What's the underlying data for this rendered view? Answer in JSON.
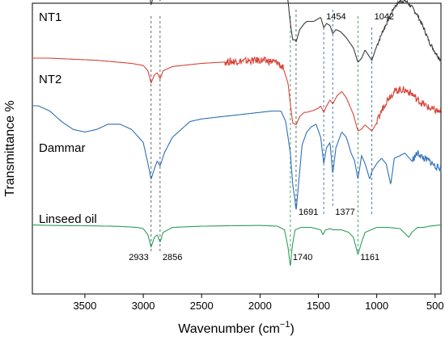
{
  "chart_data": {
    "type": "line",
    "title": "",
    "xlabel_main": "Wavenumber (cm",
    "xlabel_sup": "−1",
    "xlabel_close": ")",
    "ylabel": "Transmittance %",
    "xlim": [
      3950,
      450
    ],
    "x_reversed": true,
    "xticks": [
      3500,
      3000,
      2500,
      2000,
      1500,
      1000,
      500
    ],
    "grid": false,
    "legend": "none",
    "series": [
      {
        "name": "NT1",
        "color": "#3a3a3a",
        "points": [
          [
            3950,
            0.86
          ],
          [
            3800,
            0.865
          ],
          [
            3600,
            0.87
          ],
          [
            3400,
            0.87
          ],
          [
            3200,
            0.865
          ],
          [
            3050,
            0.86
          ],
          [
            2980,
            0.85
          ],
          [
            2950,
            0.79
          ],
          [
            2933,
            0.73
          ],
          [
            2905,
            0.79
          ],
          [
            2880,
            0.8
          ],
          [
            2856,
            0.75
          ],
          [
            2830,
            0.81
          ],
          [
            2750,
            0.84
          ],
          [
            2500,
            0.85
          ],
          [
            2200,
            0.86
          ],
          [
            2000,
            0.865
          ],
          [
            1850,
            0.865
          ],
          [
            1790,
            0.84
          ],
          [
            1760,
            0.75
          ],
          [
            1740,
            0.64
          ],
          [
            1720,
            0.56
          ],
          [
            1700,
            0.56
          ],
          [
            1691,
            0.55
          ],
          [
            1660,
            0.61
          ],
          [
            1620,
            0.64
          ],
          [
            1600,
            0.65
          ],
          [
            1540,
            0.65
          ],
          [
            1510,
            0.66
          ],
          [
            1480,
            0.67
          ],
          [
            1454,
            0.62
          ],
          [
            1430,
            0.64
          ],
          [
            1400,
            0.63
          ],
          [
            1377,
            0.59
          ],
          [
            1350,
            0.61
          ],
          [
            1310,
            0.6
          ],
          [
            1260,
            0.57
          ],
          [
            1200,
            0.52
          ],
          [
            1161,
            0.45
          ],
          [
            1130,
            0.47
          ],
          [
            1100,
            0.51
          ],
          [
            1042,
            0.46
          ],
          [
            1000,
            0.53
          ],
          [
            950,
            0.6
          ],
          [
            900,
            0.66
          ],
          [
            850,
            0.72
          ],
          [
            800,
            0.75
          ],
          [
            750,
            0.75
          ],
          [
            700,
            0.72
          ],
          [
            650,
            0.68
          ],
          [
            600,
            0.62
          ],
          [
            550,
            0.55
          ],
          [
            500,
            0.5
          ],
          [
            450,
            0.46
          ]
        ]
      },
      {
        "name": "NT2",
        "color": "#d8453a",
        "points": [
          [
            3950,
            0.62
          ],
          [
            3800,
            0.62
          ],
          [
            3600,
            0.615
          ],
          [
            3400,
            0.61
          ],
          [
            3200,
            0.6
          ],
          [
            3100,
            0.595
          ],
          [
            3000,
            0.585
          ],
          [
            2960,
            0.56
          ],
          [
            2933,
            0.5
          ],
          [
            2905,
            0.54
          ],
          [
            2880,
            0.55
          ],
          [
            2856,
            0.52
          ],
          [
            2830,
            0.56
          ],
          [
            2750,
            0.58
          ],
          [
            2500,
            0.595
          ],
          [
            2200,
            0.605
          ],
          [
            2000,
            0.61
          ],
          [
            1850,
            0.6
          ],
          [
            1800,
            0.57
          ],
          [
            1760,
            0.5
          ],
          [
            1740,
            0.4
          ],
          [
            1720,
            0.31
          ],
          [
            1691,
            0.3
          ],
          [
            1660,
            0.34
          ],
          [
            1620,
            0.36
          ],
          [
            1600,
            0.36
          ],
          [
            1540,
            0.37
          ],
          [
            1500,
            0.38
          ],
          [
            1480,
            0.39
          ],
          [
            1454,
            0.36
          ],
          [
            1430,
            0.39
          ],
          [
            1400,
            0.42
          ],
          [
            1377,
            0.4
          ],
          [
            1340,
            0.44
          ],
          [
            1300,
            0.46
          ],
          [
            1260,
            0.43
          ],
          [
            1200,
            0.35
          ],
          [
            1161,
            0.27
          ],
          [
            1130,
            0.28
          ],
          [
            1100,
            0.3
          ],
          [
            1042,
            0.27
          ],
          [
            1000,
            0.31
          ],
          [
            950,
            0.38
          ],
          [
            900,
            0.43
          ],
          [
            850,
            0.46
          ],
          [
            800,
            0.47
          ],
          [
            750,
            0.465
          ],
          [
            700,
            0.45
          ],
          [
            650,
            0.42
          ],
          [
            600,
            0.4
          ],
          [
            550,
            0.38
          ],
          [
            500,
            0.37
          ],
          [
            450,
            0.36
          ]
        ]
      },
      {
        "name": "Dammar",
        "color": "#2f6fb5",
        "points": [
          [
            3950,
            0.52
          ],
          [
            3900,
            0.52
          ],
          [
            3800,
            0.5
          ],
          [
            3700,
            0.46
          ],
          [
            3600,
            0.43
          ],
          [
            3500,
            0.42
          ],
          [
            3400,
            0.43
          ],
          [
            3300,
            0.45
          ],
          [
            3200,
            0.45
          ],
          [
            3100,
            0.43
          ],
          [
            3000,
            0.38
          ],
          [
            2960,
            0.3
          ],
          [
            2933,
            0.24
          ],
          [
            2905,
            0.28
          ],
          [
            2880,
            0.31
          ],
          [
            2856,
            0.29
          ],
          [
            2820,
            0.34
          ],
          [
            2750,
            0.4
          ],
          [
            2600,
            0.46
          ],
          [
            2500,
            0.47
          ],
          [
            2300,
            0.48
          ],
          [
            2100,
            0.49
          ],
          [
            1900,
            0.5
          ],
          [
            1820,
            0.5
          ],
          [
            1780,
            0.46
          ],
          [
            1740,
            0.34
          ],
          [
            1720,
            0.22
          ],
          [
            1700,
            0.16
          ],
          [
            1691,
            0.12
          ],
          [
            1670,
            0.22
          ],
          [
            1640,
            0.37
          ],
          [
            1600,
            0.42
          ],
          [
            1560,
            0.44
          ],
          [
            1520,
            0.45
          ],
          [
            1480,
            0.4
          ],
          [
            1454,
            0.3
          ],
          [
            1430,
            0.36
          ],
          [
            1400,
            0.38
          ],
          [
            1377,
            0.26
          ],
          [
            1350,
            0.36
          ],
          [
            1300,
            0.42
          ],
          [
            1260,
            0.4
          ],
          [
            1220,
            0.34
          ],
          [
            1190,
            0.31
          ],
          [
            1161,
            0.24
          ],
          [
            1130,
            0.33
          ],
          [
            1100,
            0.3
          ],
          [
            1060,
            0.24
          ],
          [
            1042,
            0.27
          ],
          [
            1000,
            0.3
          ],
          [
            960,
            0.32
          ],
          [
            920,
            0.3
          ],
          [
            880,
            0.22
          ],
          [
            850,
            0.32
          ],
          [
            800,
            0.33
          ],
          [
            760,
            0.34
          ],
          [
            700,
            0.31
          ],
          [
            650,
            0.34
          ],
          [
            600,
            0.32
          ],
          [
            550,
            0.31
          ],
          [
            500,
            0.29
          ],
          [
            450,
            0.28
          ]
        ]
      },
      {
        "name": "Linseed oil",
        "color": "#2e9e5a",
        "points": [
          [
            3950,
            0.07
          ],
          [
            3800,
            0.068
          ],
          [
            3600,
            0.067
          ],
          [
            3400,
            0.066
          ],
          [
            3200,
            0.064
          ],
          [
            3050,
            0.06
          ],
          [
            3000,
            0.055
          ],
          [
            2960,
            0.03
          ],
          [
            2933,
            -0.02
          ],
          [
            2905,
            0.02
          ],
          [
            2880,
            0.03
          ],
          [
            2856,
            0.0
          ],
          [
            2830,
            0.04
          ],
          [
            2750,
            0.06
          ],
          [
            2500,
            0.065
          ],
          [
            2200,
            0.067
          ],
          [
            2000,
            0.068
          ],
          [
            1850,
            0.065
          ],
          [
            1790,
            0.05
          ],
          [
            1760,
            -0.02
          ],
          [
            1740,
            -0.1
          ],
          [
            1725,
            -0.02
          ],
          [
            1700,
            0.05
          ],
          [
            1650,
            0.06
          ],
          [
            1560,
            0.06
          ],
          [
            1480,
            0.05
          ],
          [
            1460,
            0.03
          ],
          [
            1440,
            0.05
          ],
          [
            1400,
            0.055
          ],
          [
            1377,
            0.05
          ],
          [
            1300,
            0.05
          ],
          [
            1240,
            0.04
          ],
          [
            1200,
            0.02
          ],
          [
            1161,
            -0.05
          ],
          [
            1130,
            0.0
          ],
          [
            1100,
            0.04
          ],
          [
            1050,
            0.05
          ],
          [
            1000,
            0.06
          ],
          [
            950,
            0.06
          ],
          [
            900,
            0.06
          ],
          [
            800,
            0.055
          ],
          [
            725,
            0.02
          ],
          [
            700,
            0.04
          ],
          [
            650,
            0.06
          ],
          [
            600,
            0.06
          ],
          [
            550,
            0.065
          ],
          [
            450,
            0.07
          ]
        ]
      }
    ],
    "series_labels": [
      {
        "text": "NT1",
        "series": 0
      },
      {
        "text": "NT2",
        "series": 1
      },
      {
        "text": "Dammar",
        "series": 2
      },
      {
        "text": "Linseed oil",
        "series": 3
      }
    ],
    "marker_lines": [
      {
        "x": 2933,
        "color": "#555555",
        "label": "2933",
        "label_pos": "bottom"
      },
      {
        "x": 2856,
        "color": "#555555",
        "label": "2856",
        "label_pos": "bottom"
      },
      {
        "x": 1740,
        "color": "#2e9e5a",
        "label": "1740",
        "label_pos": "bottom"
      },
      {
        "x": 1691,
        "color": "#555555",
        "label": "1691",
        "label_pos": "middle"
      },
      {
        "x": 1454,
        "color": "#2f6fb5",
        "label": "1454",
        "label_pos": "top"
      },
      {
        "x": 1377,
        "color": "#2f6fb5",
        "label": "1377",
        "label_pos": "middle"
      },
      {
        "x": 1161,
        "color": "#2e9e5a",
        "label": "1161",
        "label_pos": "bottom"
      },
      {
        "x": 1042,
        "color": "#2f6fb5",
        "label": "1042",
        "label_pos": "top"
      }
    ]
  }
}
